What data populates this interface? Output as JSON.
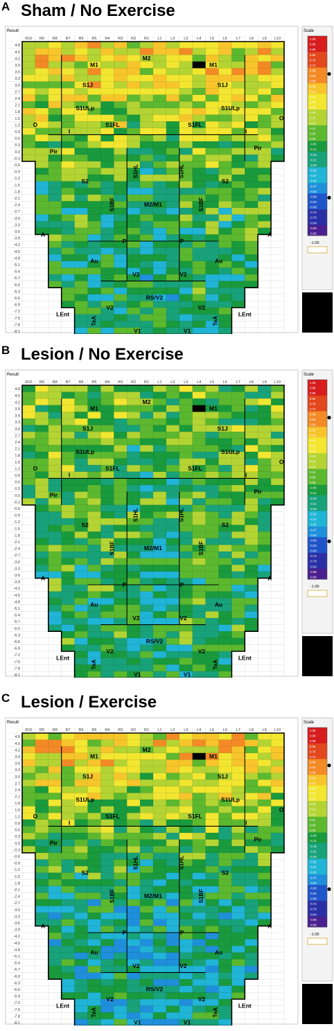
{
  "chart_data": [
    {
      "type": "heatmap",
      "panel_letter": "A",
      "title": "Sham / No Exercise",
      "result_label": "Result",
      "scale_label": "Scale",
      "seed": 11,
      "bias": [
        [
          0.02,
          0.4
        ],
        [
          0.13,
          0.36
        ],
        [
          0.32,
          0.12
        ],
        [
          0.55,
          -0.06
        ],
        [
          0.75,
          -0.14
        ],
        [
          0.98,
          -0.12
        ]
      ]
    },
    {
      "type": "heatmap",
      "panel_letter": "B",
      "title": "Lesion / No Exercise",
      "result_label": "Result",
      "scale_label": "Scale",
      "seed": 29,
      "bias": [
        [
          0.02,
          0.08
        ],
        [
          0.13,
          0.06
        ],
        [
          0.32,
          0.02
        ],
        [
          0.55,
          -0.04
        ],
        [
          0.75,
          -0.08
        ],
        [
          0.98,
          -0.08
        ]
      ]
    },
    {
      "type": "heatmap",
      "panel_letter": "C",
      "title": "Lesion / Exercise",
      "result_label": "Result",
      "scale_label": "Scale",
      "seed": 47,
      "bias": [
        [
          0.02,
          0.4
        ],
        [
          0.13,
          0.34
        ],
        [
          0.32,
          0.08
        ],
        [
          0.55,
          -0.14
        ],
        [
          0.75,
          -0.24
        ],
        [
          0.98,
          -0.22
        ]
      ]
    }
  ],
  "columns": [
    "R10",
    "R9",
    "R8",
    "R7",
    "R6",
    "R5",
    "R4",
    "R3",
    "R2",
    "R1",
    "L1",
    "L2",
    "L3",
    "L4",
    "L5",
    "L6",
    "L7",
    "L8",
    "L9",
    "L10"
  ],
  "rows": [
    "4.8",
    "4.5",
    "4.2",
    "3.9",
    "3.6",
    "3.3",
    "3.0",
    "2.7",
    "2.4",
    "2.1",
    "1.8",
    "1.5",
    "1.2",
    "0.9",
    "0.6",
    "0.3",
    "0.0",
    "-0.3",
    "-0.6",
    "-0.9",
    "-1.2",
    "-1.5",
    "-1.8",
    "-2.1",
    "-2.4",
    "-2.7",
    "-3.0",
    "-3.3",
    "-3.6",
    "-3.9",
    "-4.2",
    "-4.5",
    "-4.8",
    "-5.1",
    "-5.4",
    "-5.7",
    "-6.0",
    "-6.3",
    "-6.6",
    "-6.9",
    "-7.2",
    "-7.5",
    "-7.8",
    "-8.1"
  ],
  "region_labels": [
    {
      "text": "M1",
      "col": 5.0,
      "row": 3
    },
    {
      "text": "M2",
      "col": 9.0,
      "row": 2
    },
    {
      "text": "M1",
      "col": 14.1,
      "row": 3
    },
    {
      "text": "S1J",
      "col": 4.5,
      "row": 6
    },
    {
      "text": "S1J",
      "col": 14.8,
      "row": 6
    },
    {
      "text": "S1ULp",
      "col": 4.3,
      "row": 9.5
    },
    {
      "text": "S1ULp",
      "col": 15.4,
      "row": 9.5
    },
    {
      "text": "S1FL",
      "col": 6.4,
      "row": 12
    },
    {
      "text": "S1FL",
      "col": 12.7,
      "row": 12
    },
    {
      "text": "O",
      "col": 0.5,
      "row": 12
    },
    {
      "text": "O",
      "col": 19.3,
      "row": 11
    },
    {
      "text": "I",
      "col": 3.1,
      "row": 13
    },
    {
      "text": "I",
      "col": 16.6,
      "row": 13
    },
    {
      "text": "Pir",
      "col": 1.9,
      "row": 16
    },
    {
      "text": "Pir",
      "col": 17.5,
      "row": 15.5
    },
    {
      "text": "S2",
      "col": 4.3,
      "row": 20.5
    },
    {
      "text": "S2",
      "col": 15.0,
      "row": 20.5
    },
    {
      "text": "M2/M1",
      "col": 9.5,
      "row": 24
    },
    {
      "text": "A",
      "col": 1.1,
      "row": 28.5
    },
    {
      "text": "A",
      "col": 18.4,
      "row": 28.5
    },
    {
      "text": "P",
      "col": 7.3,
      "row": 29.5
    },
    {
      "text": "P",
      "col": 11.7,
      "row": 29.5
    },
    {
      "text": "Au",
      "col": 5.0,
      "row": 32.5
    },
    {
      "text": "Au",
      "col": 14.5,
      "row": 32.5
    },
    {
      "text": "V2",
      "col": 8.2,
      "row": 34.5
    },
    {
      "text": "V2",
      "col": 11.8,
      "row": 34.5
    },
    {
      "text": "RS/V2",
      "col": 9.6,
      "row": 38
    },
    {
      "text": "V2",
      "col": 6.2,
      "row": 39.5
    },
    {
      "text": "V2",
      "col": 13.2,
      "row": 39.5
    },
    {
      "text": "LEnt",
      "col": 2.6,
      "row": 40.5
    },
    {
      "text": "LEnt",
      "col": 16.5,
      "row": 40.5
    },
    {
      "text": "V1",
      "col": 8.3,
      "row": 43
    },
    {
      "text": "V1",
      "col": 12.1,
      "row": 43
    }
  ],
  "vertical_labels": [
    {
      "text": "S1HL",
      "col": 8.3,
      "row": 19
    },
    {
      "text": "S1HL",
      "col": 11.8,
      "row": 19
    },
    {
      "text": "S1BF",
      "col": 6.5,
      "row": 24
    },
    {
      "text": "S1BF",
      "col": 13.3,
      "row": 24
    },
    {
      "text": "TeA",
      "col": 5.1,
      "row": 41.5
    },
    {
      "text": "TeA",
      "col": 14.4,
      "row": 41.5
    }
  ],
  "scale_ticks": [
    "1.00",
    "0.95",
    "0.89",
    "0.84",
    "0.79",
    "0.74",
    "0.68",
    "0.63",
    "0.58",
    "0.53",
    "0.47",
    "0.42",
    "0.37",
    "0.32",
    "0.26",
    "0.21",
    "0.16",
    "0.11",
    "0.05",
    "0.00",
    "-0.05",
    "-0.11",
    "-0.16",
    "-0.21",
    "-0.26",
    "-0.32",
    "-0.37",
    "-0.42",
    "-0.47",
    "-0.53",
    "-0.58",
    "-0.63",
    "-0.68",
    "-0.74",
    "-0.79",
    "-0.84",
    "-0.89",
    "-0.95"
  ],
  "scale_min_label": "-1.00",
  "scale_range": [
    -1.0,
    1.0
  ],
  "colors": {
    "palette": [
      "#4a1f8f",
      "#2a2fa6",
      "#1f55c8",
      "#1f8fdb",
      "#20b4d6",
      "#18a27a",
      "#199a3d",
      "#5cb82f",
      "#b3d433",
      "#f2e630",
      "#f7c52b",
      "#f38a25",
      "#e2471e",
      "#d61c1c"
    ],
    "border": "#000000",
    "outline": "#1f5f1f",
    "frame": "#c8c8c8"
  }
}
